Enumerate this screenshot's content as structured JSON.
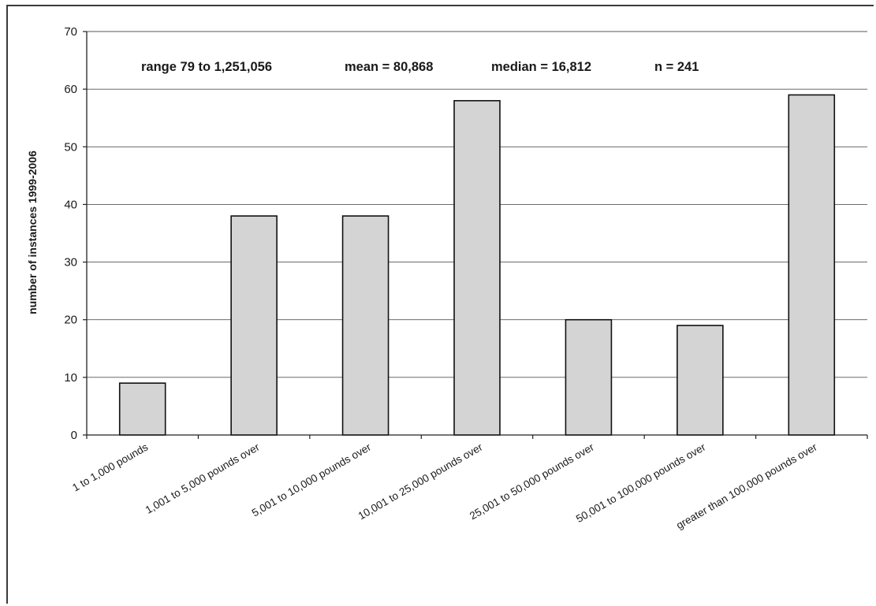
{
  "chart_data": {
    "type": "bar",
    "categories": [
      "1 to 1,000 pounds",
      "1,001 to 5,000 pounds over",
      "5,001 to 10,000 pounds over",
      "10,001 to 25,000 pounds over",
      "25,001 to 50,000 pounds over",
      "50,001 to 100,000 pounds over",
      "greater than 100,000 pounds over"
    ],
    "values": [
      9,
      38,
      38,
      58,
      20,
      19,
      59
    ],
    "title": "",
    "xlabel": "",
    "ylabel": "number of instances 1999-2006",
    "ylim": [
      0,
      70
    ],
    "yticks": [
      0,
      10,
      20,
      30,
      40,
      50,
      60,
      70
    ],
    "grid": true,
    "bar_color": "#d4d4d4",
    "annotations": {
      "range": "range 79 to 1,251,056",
      "mean": "mean = 80,868",
      "median": "median = 16,812",
      "n": "n = 241"
    }
  }
}
